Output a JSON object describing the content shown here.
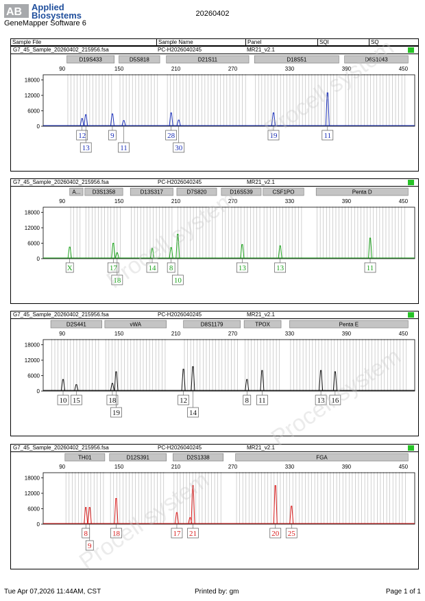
{
  "header": {
    "brand": "Applied\nBiosystems",
    "software": "GeneMapper Software 6",
    "run_date": "20260402"
  },
  "table_headers": [
    "Sample File",
    "Sample Name",
    "Panel",
    "SQI",
    "SQ"
  ],
  "footer": {
    "timestamp": "Tue Apr 07,2026 11:44AM, CST",
    "printed_by": "Printed by: gm",
    "page": "Page 1 of 1"
  },
  "watermark": "Procell system",
  "colors": {
    "blue": "#1a2fb8",
    "green": "#1aa11a",
    "black": "#111111",
    "red": "#d81a1a",
    "status": "#27c227"
  },
  "chart_data": [
    {
      "type": "line",
      "sample_file": "G7_45_Sample_20260402_215956.fsa",
      "sample_name": "PC-H2026040245",
      "panel": "MR21_v2.1",
      "series_color": "blue",
      "x_ticks": [
        90,
        150,
        210,
        270,
        330,
        390,
        450
      ],
      "y_ticks": [
        0,
        6000,
        12000,
        18000
      ],
      "xlim": [
        70,
        462
      ],
      "ylim": [
        0,
        20000
      ],
      "markers": [
        {
          "name": "D19S433",
          "start": 95,
          "end": 145
        },
        {
          "name": "D5S818",
          "start": 150,
          "end": 193
        },
        {
          "name": "D21S11",
          "start": 200,
          "end": 287
        },
        {
          "name": "D18S51",
          "start": 293,
          "end": 382
        },
        {
          "name": "D6S1043",
          "start": 388,
          "end": 455
        }
      ],
      "peaks": [
        {
          "x": 111,
          "y": 3000
        },
        {
          "x": 115,
          "y": 4500
        },
        {
          "x": 143,
          "y": 4800
        },
        {
          "x": 155,
          "y": 2200
        },
        {
          "x": 205,
          "y": 5200
        },
        {
          "x": 213,
          "y": 2400
        },
        {
          "x": 313,
          "y": 5200
        },
        {
          "x": 370,
          "y": 13000
        }
      ],
      "alleles": [
        {
          "label": "12",
          "x": 111,
          "row": 1
        },
        {
          "label": "13",
          "x": 115,
          "row": 2
        },
        {
          "label": "9",
          "x": 143,
          "row": 1
        },
        {
          "label": "11",
          "x": 155,
          "row": 2
        },
        {
          "label": "28",
          "x": 205,
          "row": 1
        },
        {
          "label": "30",
          "x": 213,
          "row": 2
        },
        {
          "label": "19",
          "x": 313,
          "row": 1
        },
        {
          "label": "11",
          "x": 370,
          "row": 1
        }
      ]
    },
    {
      "type": "line",
      "sample_file": "G7_45_Sample_20260402_215956.fsa",
      "sample_name": "PC-H2026040245",
      "panel": "MR21_v2.1",
      "series_color": "green",
      "x_ticks": [
        90,
        150,
        210,
        270,
        330,
        390,
        450
      ],
      "y_ticks": [
        0,
        6000,
        12000,
        18000
      ],
      "xlim": [
        70,
        462
      ],
      "ylim": [
        0,
        20000
      ],
      "markers": [
        {
          "name": "A...",
          "start": 98,
          "end": 112
        },
        {
          "name": "D3S1358",
          "start": 114,
          "end": 154
        },
        {
          "name": "D13S317",
          "start": 162,
          "end": 207
        },
        {
          "name": "D7S820",
          "start": 211,
          "end": 253
        },
        {
          "name": "D16S539",
          "start": 258,
          "end": 300
        },
        {
          "name": "CSF1PO",
          "start": 302,
          "end": 345
        },
        {
          "name": "Penta D",
          "start": 358,
          "end": 455
        }
      ],
      "peaks": [
        {
          "x": 98,
          "y": 4500
        },
        {
          "x": 144,
          "y": 6000
        },
        {
          "x": 148,
          "y": 2300
        },
        {
          "x": 185,
          "y": 4000
        },
        {
          "x": 205,
          "y": 4300
        },
        {
          "x": 212,
          "y": 9500
        },
        {
          "x": 280,
          "y": 5500
        },
        {
          "x": 320,
          "y": 5000
        },
        {
          "x": 415,
          "y": 8000
        }
      ],
      "alleles": [
        {
          "label": "X",
          "x": 98,
          "row": 1
        },
        {
          "label": "17",
          "x": 144,
          "row": 1
        },
        {
          "label": "18",
          "x": 148,
          "row": 2
        },
        {
          "label": "14",
          "x": 185,
          "row": 1
        },
        {
          "label": "8",
          "x": 205,
          "row": 1
        },
        {
          "label": "10",
          "x": 212,
          "row": 2
        },
        {
          "label": "13",
          "x": 280,
          "row": 1
        },
        {
          "label": "13",
          "x": 320,
          "row": 1
        },
        {
          "label": "11",
          "x": 415,
          "row": 1
        }
      ]
    },
    {
      "type": "line",
      "sample_file": "G7_45_Sample_20260402_215956.fsa",
      "sample_name": "PC-H2026040245",
      "panel": "MR21_v2.1",
      "series_color": "black",
      "x_ticks": [
        90,
        150,
        210,
        270,
        330,
        390,
        450
      ],
      "y_ticks": [
        0,
        6000,
        12000,
        18000
      ],
      "xlim": [
        70,
        462
      ],
      "ylim": [
        0,
        20000
      ],
      "markers": [
        {
          "name": "D2S441",
          "start": 78,
          "end": 132
        },
        {
          "name": "vWA",
          "start": 135,
          "end": 200
        },
        {
          "name": "D8S1179",
          "start": 218,
          "end": 278
        },
        {
          "name": "TPOX",
          "start": 282,
          "end": 321
        },
        {
          "name": "Penta E",
          "start": 330,
          "end": 455
        }
      ],
      "peaks": [
        {
          "x": 91,
          "y": 4500
        },
        {
          "x": 105,
          "y": 2500
        },
        {
          "x": 143,
          "y": 3000
        },
        {
          "x": 147,
          "y": 7500
        },
        {
          "x": 218,
          "y": 8500
        },
        {
          "x": 228,
          "y": 9500
        },
        {
          "x": 285,
          "y": 4500
        },
        {
          "x": 301,
          "y": 8000
        },
        {
          "x": 363,
          "y": 8000
        },
        {
          "x": 378,
          "y": 7500
        }
      ],
      "alleles": [
        {
          "label": "10",
          "x": 91,
          "row": 1
        },
        {
          "label": "15",
          "x": 105,
          "row": 1
        },
        {
          "label": "18",
          "x": 143,
          "row": 1
        },
        {
          "label": "19",
          "x": 147,
          "row": 2
        },
        {
          "label": "12",
          "x": 218,
          "row": 1
        },
        {
          "label": "14",
          "x": 228,
          "row": 2
        },
        {
          "label": "8",
          "x": 285,
          "row": 1
        },
        {
          "label": "11",
          "x": 301,
          "row": 1
        },
        {
          "label": "13",
          "x": 363,
          "row": 1
        },
        {
          "label": "16",
          "x": 378,
          "row": 1
        }
      ]
    },
    {
      "type": "line",
      "sample_file": "G7_45_Sample_20260402_215956.fsa",
      "sample_name": "PC-H2026040245",
      "panel": "MR21_v2.1",
      "series_color": "red",
      "x_ticks": [
        90,
        150,
        210,
        270,
        330,
        390,
        450
      ],
      "y_ticks": [
        0,
        6000,
        12000,
        18000
      ],
      "xlim": [
        70,
        462
      ],
      "ylim": [
        0,
        20000
      ],
      "markers": [
        {
          "name": "TH01",
          "start": 93,
          "end": 135
        },
        {
          "name": "D12S391",
          "start": 140,
          "end": 200
        },
        {
          "name": "D2S1338",
          "start": 207,
          "end": 260
        },
        {
          "name": "FGA",
          "start": 273,
          "end": 455
        }
      ],
      "peaks": [
        {
          "x": 115,
          "y": 6500
        },
        {
          "x": 119,
          "y": 6500
        },
        {
          "x": 147,
          "y": 10000
        },
        {
          "x": 211,
          "y": 4500
        },
        {
          "x": 225,
          "y": 2500
        },
        {
          "x": 228,
          "y": 15000
        },
        {
          "x": 315,
          "y": 15000
        },
        {
          "x": 332,
          "y": 7000
        }
      ],
      "alleles": [
        {
          "label": "8",
          "x": 115,
          "row": 1
        },
        {
          "label": "9",
          "x": 119,
          "row": 2
        },
        {
          "label": "18",
          "x": 147,
          "row": 1
        },
        {
          "label": "17",
          "x": 211,
          "row": 1
        },
        {
          "label": "21",
          "x": 228,
          "row": 1
        },
        {
          "label": "20",
          "x": 315,
          "row": 1
        },
        {
          "label": "25",
          "x": 332,
          "row": 1
        }
      ]
    }
  ]
}
